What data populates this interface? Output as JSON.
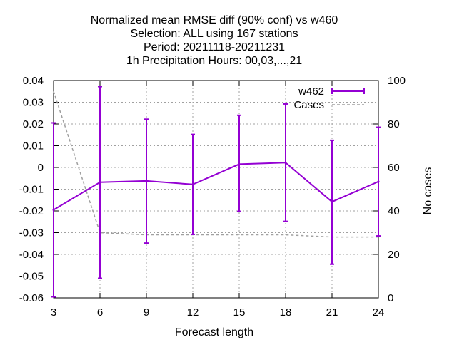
{
  "chart_data": {
    "type": "line",
    "title_lines": [
      "Normalized mean RMSE diff (90% conf) vs w460",
      "Selection: ALL using   167 stations",
      "Period: 20211118-20211231",
      "1h Precipitation   Hours:  00,03,...,21"
    ],
    "xlabel": "Forecast length",
    "ylabel": "",
    "y2label": "No cases",
    "x": [
      3,
      6,
      9,
      12,
      15,
      18,
      21,
      24
    ],
    "xlim": [
      3,
      24
    ],
    "ylim": [
      -0.06,
      0.04
    ],
    "y2lim": [
      0,
      100
    ],
    "x_ticks": [
      "3",
      "6",
      "9",
      "12",
      "15",
      "18",
      "21",
      "24"
    ],
    "y_ticks": [
      "-0.06",
      "-0.05",
      "-0.04",
      "-0.03",
      "-0.02",
      "-0.01",
      "0",
      "0.01",
      "0.02",
      "0.03",
      "0.04"
    ],
    "y2_ticks": [
      "0",
      "20",
      "40",
      "60",
      "80",
      "100"
    ],
    "grid": true,
    "legend_position": "top-right",
    "series": [
      {
        "name": "w462",
        "axis": "left",
        "style": "line-errorbars",
        "color": "#9400d3",
        "values": [
          -0.0195,
          -0.0068,
          -0.0062,
          -0.0078,
          0.0015,
          0.0022,
          -0.0158,
          -0.0065
        ],
        "error_low": [
          -0.0595,
          -0.051,
          -0.0348,
          -0.0308,
          -0.0202,
          -0.0248,
          -0.0445,
          -0.0315
        ],
        "error_high": [
          0.0205,
          0.0372,
          0.0222,
          0.0152,
          0.024,
          0.0292,
          0.0125,
          0.0185
        ]
      },
      {
        "name": "Cases",
        "axis": "right",
        "style": "dashed",
        "color": "#a0a0a0",
        "values": [
          95,
          30,
          29,
          29,
          29,
          29,
          28,
          28
        ]
      }
    ]
  }
}
